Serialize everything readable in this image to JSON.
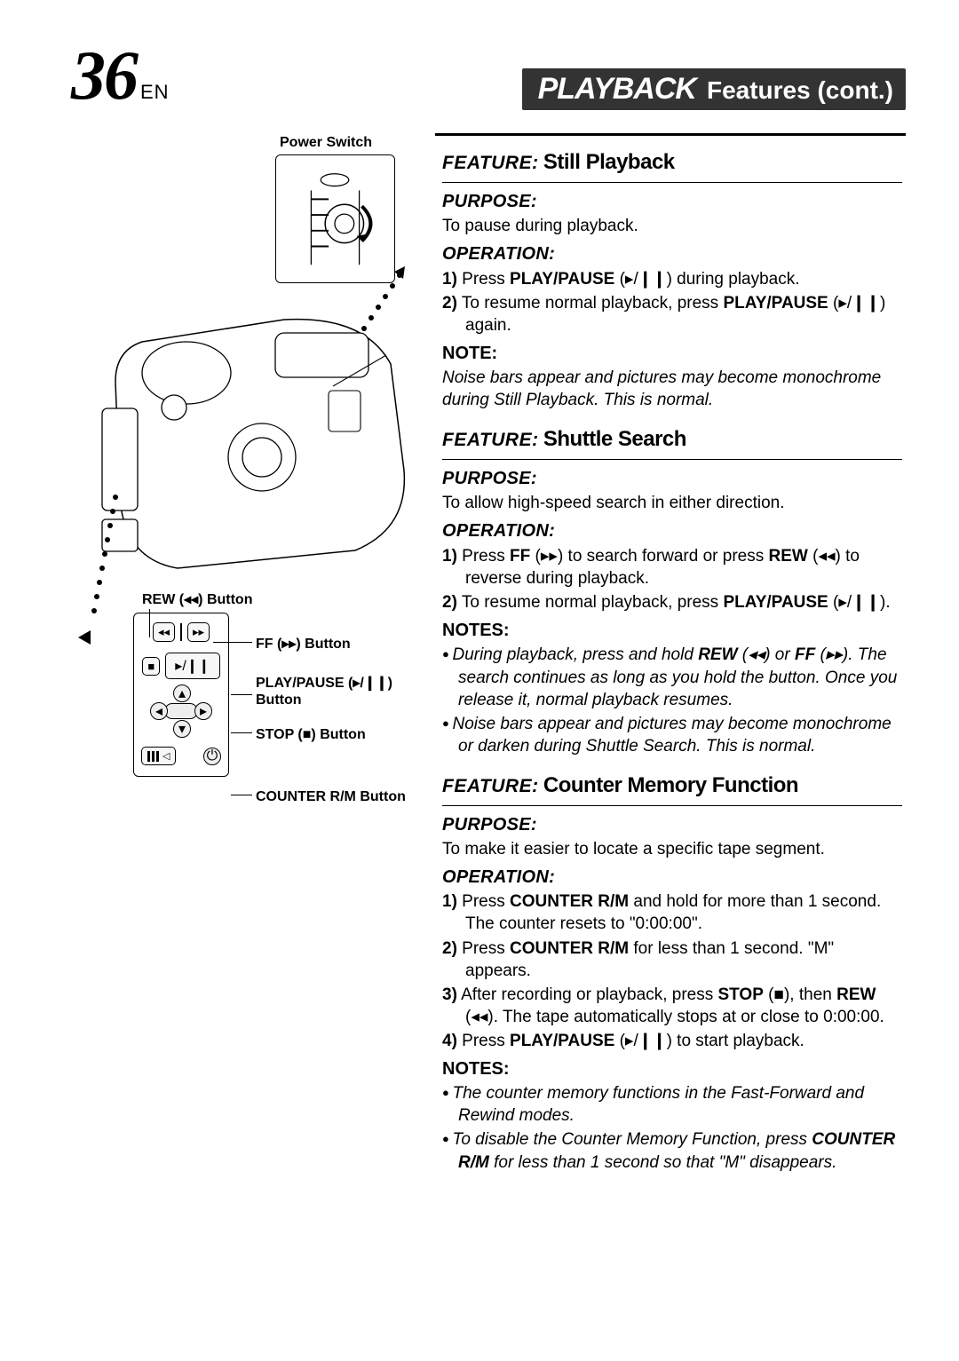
{
  "page": {
    "number": "36",
    "lang": "EN"
  },
  "header": {
    "title_big": "PLAYBACK",
    "title_rest": "Features (cont.)"
  },
  "left": {
    "power_switch_label": "Power Switch",
    "rew_label": "REW (◂◂) Button",
    "ff_label": "FF (▸▸) Button",
    "pp_label": "PLAY/PAUSE (▸/❙❙) Button",
    "stop_label": "STOP (■) Button",
    "counter_label": "COUNTER R/M Button"
  },
  "symbols": {
    "play_pause": "▸/❙❙",
    "ff": "▸▸",
    "rew": "◂◂",
    "stop": "■"
  },
  "features": [
    {
      "tag": "FEATURE:",
      "name": "Still Playback",
      "purpose_head": "PURPOSE:",
      "purpose": "To pause during playback.",
      "operation_head": "OPERATION:",
      "steps": [
        "Press <b>PLAY/PAUSE</b> (<span class='sym'>▸/❙❙</span>) during playback.",
        "To resume normal playback, press <b>PLAY/PAUSE</b> (<span class='sym'>▸/❙❙</span>) again."
      ],
      "note_head": "NOTE:",
      "notes_style": "paragraph",
      "notes": [
        "Noise bars appear and pictures may become monochrome during Still Playback. This is normal."
      ]
    },
    {
      "tag": "FEATURE:",
      "name": "Shuttle Search",
      "purpose_head": "PURPOSE:",
      "purpose": "To allow high-speed search in either direction.",
      "operation_head": "OPERATION:",
      "steps": [
        "Press <b>FF</b> (<span class='sym'>▸▸</span>) to search forward or press <b>REW</b> (<span class='sym'>◂◂</span>) to reverse during playback.",
        "To resume normal playback, press <b>PLAY/PAUSE</b> (<span class='sym'>▸/❙❙</span>)."
      ],
      "note_head": "NOTES:",
      "notes_style": "bullets",
      "notes": [
        "During playback, press and hold <b>REW</b> (<span class='sym'>◂◂</span>) or <b>FF</b> (<span class='sym'>▸▸</span>). The search continues as long as you hold the button. Once you release it, normal playback resumes.",
        "Noise bars appear and pictures may become monochrome or darken during Shuttle Search. This is normal."
      ]
    },
    {
      "tag": "FEATURE:",
      "name": "Counter Memory Function",
      "purpose_head": "PURPOSE:",
      "purpose": "To make it easier to locate a specific tape segment.",
      "operation_head": "OPERATION:",
      "steps": [
        "Press <b>COUNTER R/M</b> and hold for more than 1 second. The counter resets to \"0:00:00\".",
        "Press <b>COUNTER R/M</b> for less than 1 second. \"M\" appears.",
        "After recording or playback, press <b>STOP</b> (<span class='sym'>■</span>), then <b>REW</b> (<span class='sym'>◂◂</span>). The tape automatically stops at or close to 0:00:00.",
        "Press <b>PLAY/PAUSE</b> (<span class='sym'>▸/❙❙</span>) to start playback."
      ],
      "note_head": "NOTES:",
      "notes_style": "bullets",
      "notes": [
        "The counter memory functions in the Fast-Forward and Rewind modes.",
        "To disable the Counter Memory Function, press <b>COUNTER R/M</b> for less than 1 second so that \"M\" disappears."
      ]
    }
  ],
  "colors": {
    "text": "#000000",
    "bg": "#ffffff",
    "header_bar": "#333333"
  }
}
